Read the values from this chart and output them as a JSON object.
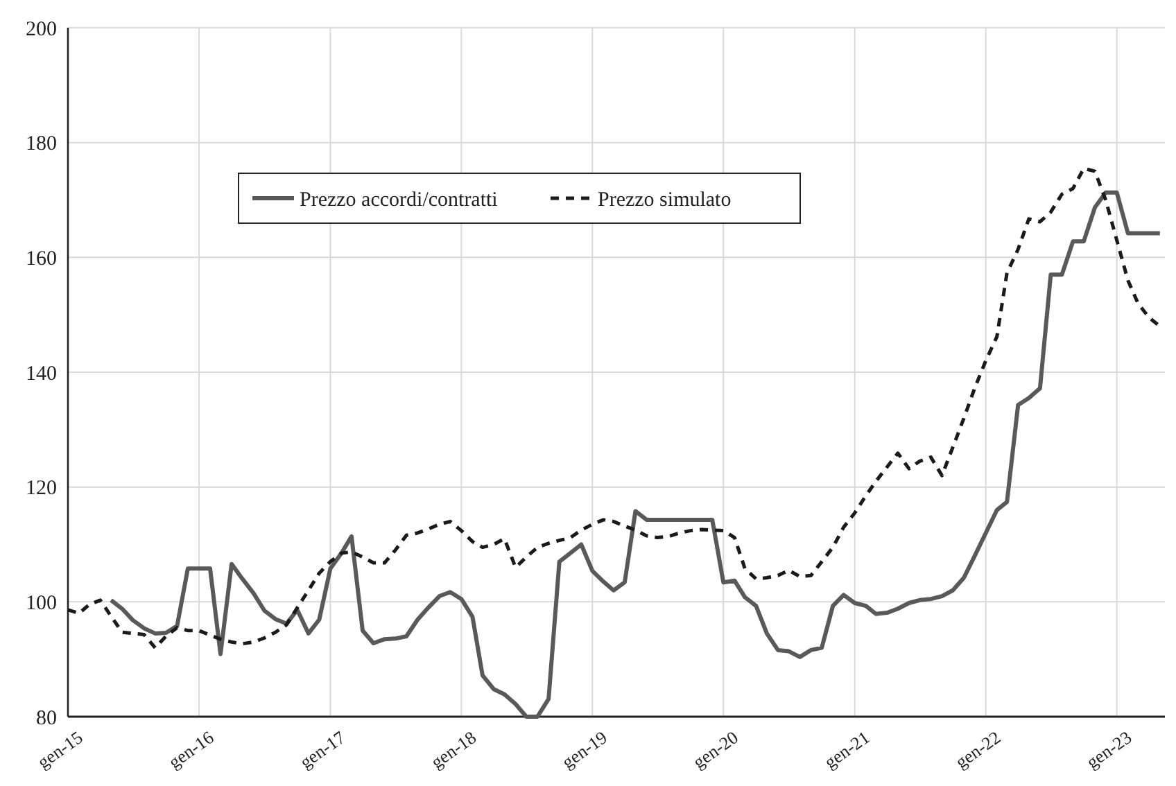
{
  "chart_data": {
    "type": "line",
    "x": [
      "2015-01",
      "2015-02",
      "2015-03",
      "2015-04",
      "2015-05",
      "2015-06",
      "2015-07",
      "2015-08",
      "2015-09",
      "2015-10",
      "2015-11",
      "2015-12",
      "2016-01",
      "2016-02",
      "2016-03",
      "2016-04",
      "2016-05",
      "2016-06",
      "2016-07",
      "2016-08",
      "2016-09",
      "2016-10",
      "2016-11",
      "2016-12",
      "2017-01",
      "2017-02",
      "2017-03",
      "2017-04",
      "2017-05",
      "2017-06",
      "2017-07",
      "2017-08",
      "2017-09",
      "2017-10",
      "2017-11",
      "2017-12",
      "2018-01",
      "2018-02",
      "2018-03",
      "2018-04",
      "2018-05",
      "2018-06",
      "2018-07",
      "2018-08",
      "2018-09",
      "2018-10",
      "2018-11",
      "2018-12",
      "2019-01",
      "2019-02",
      "2019-03",
      "2019-04",
      "2019-05",
      "2019-06",
      "2019-07",
      "2019-08",
      "2019-09",
      "2019-10",
      "2019-11",
      "2019-12",
      "2020-01",
      "2020-02",
      "2020-03",
      "2020-04",
      "2020-05",
      "2020-06",
      "2020-07",
      "2020-08",
      "2020-09",
      "2020-10",
      "2020-11",
      "2020-12",
      "2021-01",
      "2021-02",
      "2021-03",
      "2021-04",
      "2021-05",
      "2021-06",
      "2021-07",
      "2021-08",
      "2021-09",
      "2021-10",
      "2021-11",
      "2021-12",
      "2022-01",
      "2022-02",
      "2022-03",
      "2022-04",
      "2022-05",
      "2022-06",
      "2022-07",
      "2022-08",
      "2022-09",
      "2022-10",
      "2022-11",
      "2022-12",
      "2023-01",
      "2023-02",
      "2023-03",
      "2023-04",
      "2023-05"
    ],
    "series": [
      {
        "name": "Prezzo accordi/contratti",
        "color": "#595959",
        "line_style": "solid",
        "values": [
          null,
          null,
          null,
          null,
          100.3,
          98.8,
          96.8,
          95.4,
          94.5,
          94.6,
          95.8,
          105.8,
          105.8,
          105.8,
          90.9,
          106.6,
          104,
          101.5,
          98.5,
          97,
          96.2,
          98.6,
          94.5,
          96.9,
          105.8,
          108.5,
          111.4,
          95,
          92.8,
          93.5,
          93.6,
          94,
          96.9,
          99,
          101,
          101.7,
          100.5,
          97.4,
          87.2,
          84.8,
          83.9,
          82.2,
          80,
          80,
          83.1,
          107,
          108.5,
          110,
          105.4,
          103.5,
          102,
          103.4,
          115.8,
          114.3,
          114.3,
          114.3,
          114.3,
          114.3,
          114.3,
          114.3,
          103.4,
          103.7,
          100.8,
          99.3,
          94.5,
          91.6,
          91.4,
          90.4,
          91.6,
          92,
          99.3,
          101.2,
          99.8,
          99.3,
          97.9,
          98.1,
          98.8,
          99.8,
          100.3,
          100.5,
          101,
          102,
          104.2,
          108,
          112,
          116,
          117.4,
          134.3,
          135.5,
          137.2,
          157,
          157,
          162.8,
          162.8,
          168.7,
          171.3,
          171.3,
          164.2,
          164.2,
          164.2,
          164.2
        ]
      },
      {
        "name": "Prezzo simulato",
        "color": "#1a1a1a",
        "line_style": "dashed",
        "values": [
          98.6,
          98,
          99.5,
          100.3,
          97.5,
          94.7,
          94.5,
          94.3,
          92,
          94,
          95.5,
          95,
          95,
          94.2,
          93.5,
          93,
          92.7,
          93,
          93.7,
          94.7,
          96,
          99,
          102,
          105,
          107,
          108.5,
          108.7,
          107.8,
          106.8,
          106.8,
          109,
          111.6,
          112,
          112.7,
          113.5,
          114,
          112.4,
          110.5,
          109.5,
          110,
          111,
          106,
          107.8,
          109.5,
          110.2,
          110.7,
          111.2,
          112.5,
          113.5,
          114.3,
          114,
          113.2,
          112.5,
          111.5,
          111.2,
          111.4,
          112,
          112.4,
          112.6,
          112.5,
          112.4,
          111.2,
          105.8,
          104,
          104.2,
          104.6,
          105.5,
          104.4,
          104.6,
          107,
          109.5,
          113,
          115.5,
          118.5,
          121,
          123.5,
          125.9,
          123.2,
          124.5,
          125.2,
          122,
          126.9,
          132,
          137.2,
          142,
          146.2,
          157.3,
          161.4,
          166.7,
          166.2,
          167.9,
          171,
          172,
          175.5,
          175,
          170,
          163,
          156,
          152,
          149.5,
          148
        ]
      }
    ],
    "xlim": [
      "2015-01",
      "2023-05-15"
    ],
    "xticks": [
      {
        "value": "2015-01",
        "label": "gen-15"
      },
      {
        "value": "2016-01",
        "label": "gen-16"
      },
      {
        "value": "2017-01",
        "label": "gen-17"
      },
      {
        "value": "2018-01",
        "label": "gen-18"
      },
      {
        "value": "2019-01",
        "label": "gen-19"
      },
      {
        "value": "2020-01",
        "label": "gen-20"
      },
      {
        "value": "2021-01",
        "label": "gen-21"
      },
      {
        "value": "2022-01",
        "label": "gen-22"
      },
      {
        "value": "2023-01",
        "label": "gen-23"
      }
    ],
    "ylim": [
      80,
      200
    ],
    "yticks": [
      80,
      100,
      120,
      140,
      160,
      180,
      200
    ],
    "grid": true,
    "legend": "top left",
    "marker": "none"
  }
}
